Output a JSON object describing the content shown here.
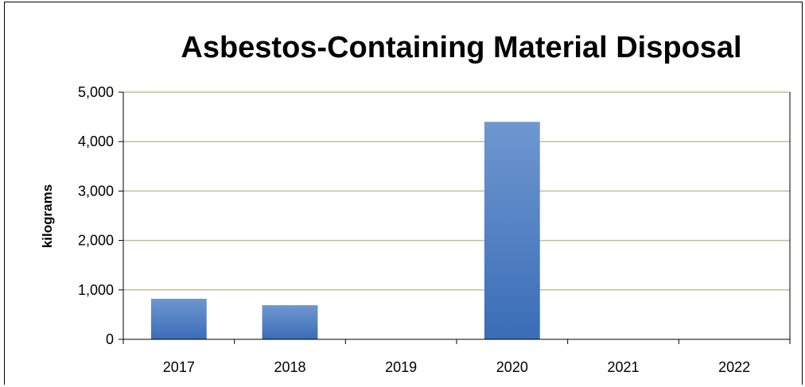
{
  "chart_data": {
    "type": "bar",
    "title": "Asbestos-Containing Material Disposal",
    "xlabel": "",
    "ylabel": "kilograms",
    "categories": [
      "2017",
      "2018",
      "2019",
      "2020",
      "2021",
      "2022"
    ],
    "values": [
      820,
      690,
      0,
      4400,
      0,
      0
    ],
    "ylim": [
      0,
      5000
    ],
    "yticks": [
      0,
      1000,
      2000,
      3000,
      4000,
      5000
    ],
    "ytick_labels": [
      "0",
      "1,000",
      "2,000",
      "3,000",
      "4,000",
      "5,000"
    ],
    "grid": true,
    "legend": "none",
    "colors": {
      "bar_top": "#6f97d0",
      "bar_bottom": "#3a6db7",
      "gridline": "#c9bd8f",
      "axis": "#000000"
    }
  }
}
